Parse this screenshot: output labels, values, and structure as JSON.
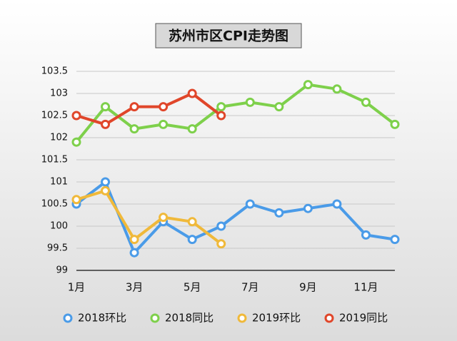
{
  "chart_data": {
    "type": "line",
    "title": "苏州市区CPI走势图",
    "categories": [
      "1月",
      null,
      "3月",
      null,
      "5月",
      null,
      "7月",
      null,
      "9月",
      null,
      "11月",
      null
    ],
    "series": [
      {
        "name": "2018环比",
        "color": "#4a9be8",
        "values": [
          100.5,
          101,
          99.4,
          100.1,
          99.7,
          100,
          100.5,
          100.3,
          100.4,
          100.5,
          99.8,
          99.7
        ]
      },
      {
        "name": "2018同比",
        "color": "#7ed04b",
        "values": [
          101.9,
          102.7,
          102.2,
          102.3,
          102.2,
          102.7,
          102.8,
          102.7,
          103.2,
          103.1,
          102.8,
          102.3
        ]
      },
      {
        "name": "2019环比",
        "color": "#f0b93a",
        "values": [
          100.6,
          100.8,
          99.7,
          100.2,
          100.1,
          99.6,
          null,
          null,
          null,
          null,
          null,
          null
        ]
      },
      {
        "name": "2019同比",
        "color": "#e0462a",
        "values": [
          102.5,
          102.3,
          102.7,
          102.7,
          103,
          102.5,
          null,
          null,
          null,
          null,
          null,
          null
        ]
      }
    ],
    "ylim": [
      99,
      103.5
    ],
    "yticks": [
      99,
      99.5,
      100,
      100.5,
      101,
      101.5,
      102,
      102.5,
      103,
      103.5
    ],
    "grid": true,
    "legend": "bottom"
  }
}
